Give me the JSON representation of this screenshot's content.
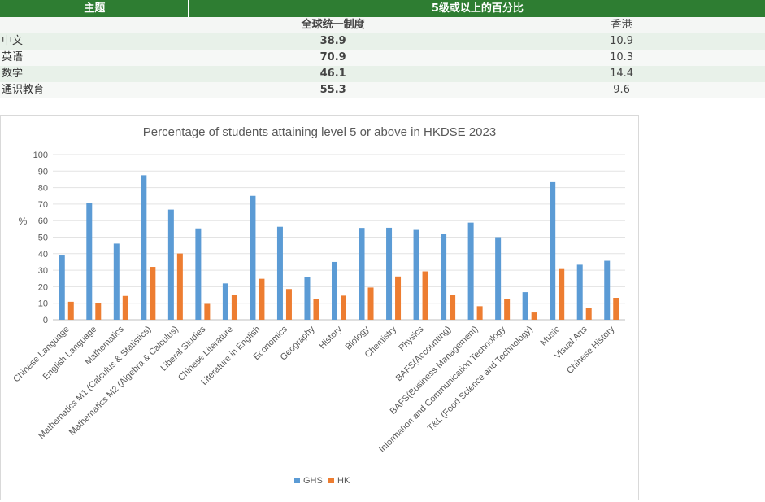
{
  "table": {
    "subject_header": "主题",
    "group_header": "5级或以上的百分比",
    "col_ghs": "全球统一制度",
    "col_hk": "香港",
    "rows": [
      {
        "subject": "中文",
        "ghs": "38.9",
        "hk": "10.9"
      },
      {
        "subject": "英语",
        "ghs": "70.9",
        "hk": "10.3"
      },
      {
        "subject": "数学",
        "ghs": "46.1",
        "hk": "14.4"
      },
      {
        "subject": "通识教育",
        "ghs": "55.3",
        "hk": "9.6"
      }
    ]
  },
  "chart_data": {
    "type": "bar",
    "title": "Percentage of students attaining level 5 or above in HKDSE 2023",
    "xlabel": "",
    "ylabel": "%",
    "ylim": [
      0,
      100
    ],
    "yticks": [
      "0",
      "10",
      "20",
      "30",
      "40",
      "50",
      "60",
      "70",
      "80",
      "90",
      "100"
    ],
    "grid": true,
    "legend_position": "bottom",
    "categories": [
      "Chinese Language",
      "English Language",
      "Mathematics",
      "Mathematics M1 (Calculus & Statistics)",
      "Mathematics M2 (Algebra & Calculus)",
      "Liberal Studies",
      "Chinese Literature",
      "Literature in English",
      "Economics",
      "Geography",
      "History",
      "Biology",
      "Chemistry",
      "Physics",
      "BAFS(Accounting)",
      "BAFS(Business Management)",
      "Information and Communication Technology",
      "T&L (Food Science and Technology)",
      "Music",
      "Visual Arts",
      "Chinese History"
    ],
    "series": [
      {
        "name": "GHS",
        "color": "#5b9bd5",
        "values": [
          38.9,
          70.9,
          46.1,
          87.5,
          66.7,
          55.3,
          22.0,
          75.0,
          56.3,
          26.0,
          35.0,
          55.6,
          55.7,
          54.4,
          52.0,
          58.8,
          50.0,
          16.7,
          83.3,
          33.3,
          35.7
        ]
      },
      {
        "name": "HK",
        "color": "#ed7d31",
        "values": [
          10.9,
          10.3,
          14.4,
          32.0,
          40.1,
          9.6,
          14.8,
          24.8,
          18.6,
          12.4,
          14.6,
          19.5,
          26.2,
          29.3,
          15.2,
          8.2,
          12.4,
          4.4,
          30.7,
          7.2,
          13.3
        ]
      }
    ]
  }
}
